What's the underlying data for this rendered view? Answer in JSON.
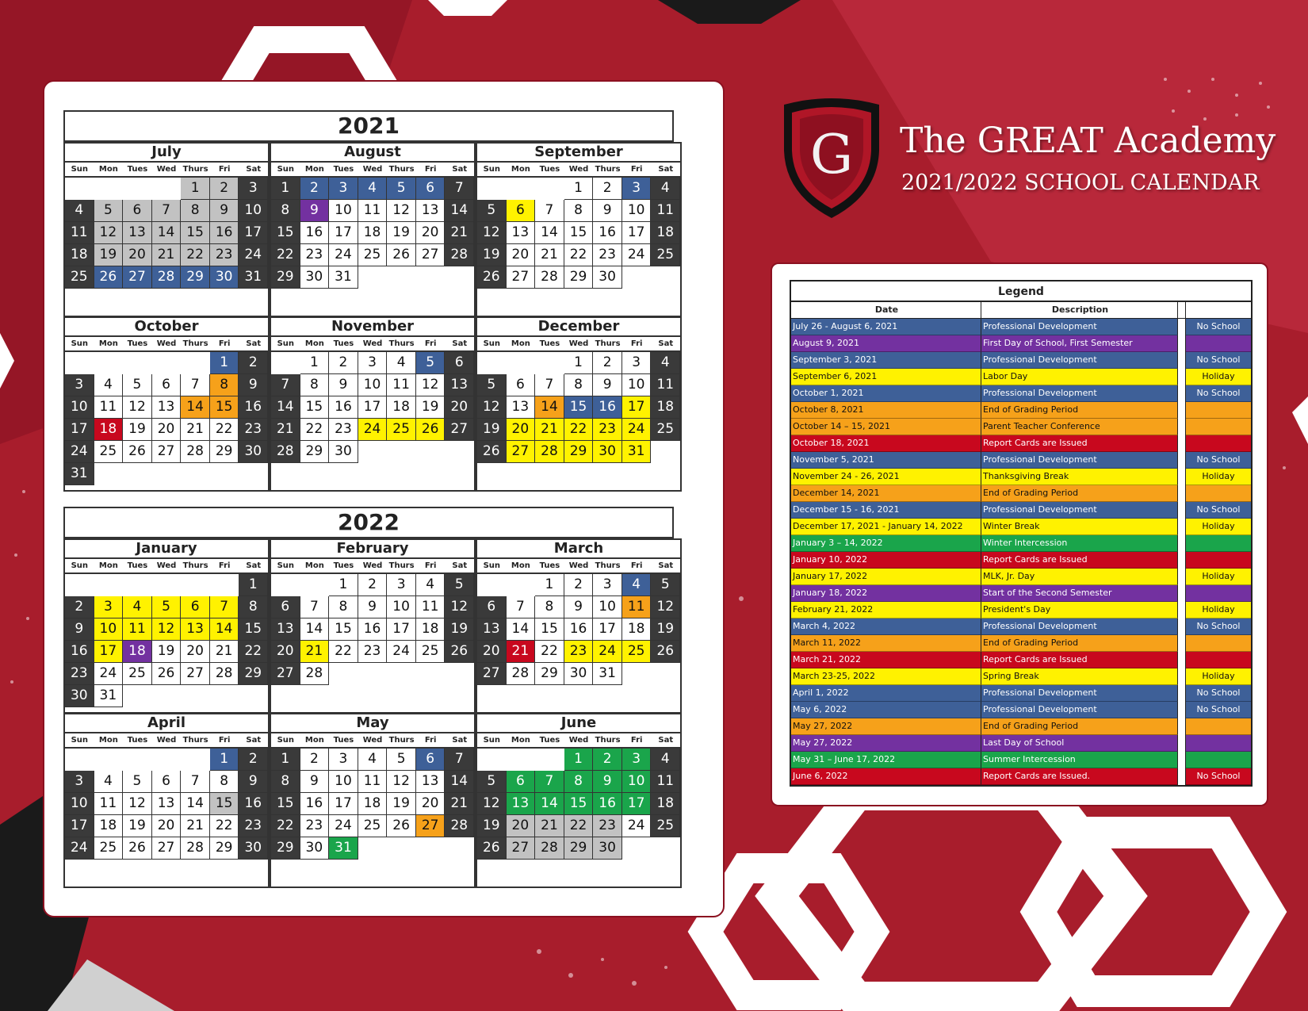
{
  "header": {
    "logo_letter": "G",
    "school_name": "The GREAT Academy",
    "subtitle": "2021/2022 SCHOOL CALENDAR"
  },
  "colors": {
    "weekend": "#3a3a3a",
    "gray": "#c2c2c2",
    "blue": "#3e6098",
    "purple": "#7331a0",
    "yellow": "#fff200",
    "orange": "#f6a11a",
    "red": "#c8081e",
    "green": "#1aa54b"
  },
  "weekday_headers": [
    "Sun",
    "Mon",
    "Tues",
    "Wed",
    "Thurs",
    "Fri",
    "Sat"
  ],
  "years": [
    {
      "year": "2021",
      "months": [
        {
          "name": "July",
          "start_dow": 4,
          "days": 31,
          "highlights": {
            "gray": [
              1,
              2,
              5,
              6,
              7,
              8,
              9,
              12,
              13,
              14,
              15,
              16,
              19,
              20,
              21,
              22,
              23
            ],
            "blue": [
              26,
              27,
              28,
              29,
              30
            ]
          }
        },
        {
          "name": "August",
          "start_dow": 0,
          "days": 31,
          "highlights": {
            "blue": [
              2,
              3,
              4,
              5,
              6
            ],
            "purple": [
              9
            ]
          }
        },
        {
          "name": "September",
          "start_dow": 3,
          "days": 30,
          "highlights": {
            "blue": [
              3
            ],
            "yellow": [
              6
            ]
          }
        },
        {
          "name": "October",
          "start_dow": 5,
          "days": 31,
          "highlights": {
            "blue": [
              1
            ],
            "orange": [
              8,
              14,
              15
            ],
            "red": [
              18
            ]
          }
        },
        {
          "name": "November",
          "start_dow": 1,
          "days": 30,
          "highlights": {
            "blue": [
              5
            ],
            "yellow": [
              24,
              25,
              26
            ]
          }
        },
        {
          "name": "December",
          "start_dow": 3,
          "days": 31,
          "highlights": {
            "orange": [
              14
            ],
            "blue": [
              15,
              16
            ],
            "yellow": [
              17,
              20,
              21,
              22,
              23,
              24,
              27,
              28,
              29,
              30,
              31
            ]
          }
        }
      ]
    },
    {
      "year": "2022",
      "months": [
        {
          "name": "January",
          "start_dow": 6,
          "days": 31,
          "highlights": {
            "yellow": [
              3,
              4,
              5,
              6,
              7,
              10,
              11,
              12,
              13,
              14,
              17
            ],
            "purple": [
              18
            ]
          }
        },
        {
          "name": "February",
          "start_dow": 2,
          "days": 28,
          "highlights": {
            "yellow": [
              21
            ]
          }
        },
        {
          "name": "March",
          "start_dow": 2,
          "days": 31,
          "highlights": {
            "blue": [
              4
            ],
            "orange": [
              11
            ],
            "red": [
              21
            ],
            "yellow": [
              23,
              24,
              25
            ]
          }
        },
        {
          "name": "April",
          "start_dow": 5,
          "days": 30,
          "highlights": {
            "blue": [
              1
            ],
            "gray": [
              15
            ]
          }
        },
        {
          "name": "May",
          "start_dow": 0,
          "days": 31,
          "highlights": {
            "blue": [
              6
            ],
            "orange": [
              27
            ],
            "green": [
              31
            ]
          }
        },
        {
          "name": "June",
          "start_dow": 3,
          "days": 30,
          "highlights": {
            "green": [
              1,
              2,
              3,
              6,
              7,
              8,
              9,
              10,
              13,
              14,
              15,
              16,
              17
            ],
            "gray": [
              20,
              21,
              22,
              23,
              27,
              28,
              29,
              30
            ]
          }
        }
      ]
    }
  ],
  "legend": {
    "title": "Legend",
    "date_header": "Date",
    "description_header": "Description",
    "rows": [
      {
        "date": "July 26 - August 6, 2021",
        "description": "Professional Development",
        "status": "No School",
        "color": "blue"
      },
      {
        "date": "August 9, 2021",
        "description": "First Day of School, First Semester",
        "status": "",
        "color": "purple"
      },
      {
        "date": "September 3, 2021",
        "description": "Professional Development",
        "status": "No School",
        "color": "blue"
      },
      {
        "date": "September 6, 2021",
        "description": "Labor Day",
        "status": "Holiday",
        "color": "yellow"
      },
      {
        "date": "October 1, 2021",
        "description": "Professional Development",
        "status": "No School",
        "color": "blue"
      },
      {
        "date": "October 8, 2021",
        "description": "End of Grading Period",
        "status": "",
        "color": "orange"
      },
      {
        "date": "October 14 – 15, 2021",
        "description": "Parent Teacher Conference",
        "status": "",
        "color": "orange"
      },
      {
        "date": "October 18, 2021",
        "description": "Report Cards are Issued",
        "status": "",
        "color": "red"
      },
      {
        "date": "November 5, 2021",
        "description": "Professional Development",
        "status": "No School",
        "color": "blue"
      },
      {
        "date": "November 24 - 26, 2021",
        "description": "Thanksgiving Break",
        "status": "Holiday",
        "color": "yellow"
      },
      {
        "date": "December 14, 2021",
        "description": "End of Grading Period",
        "status": "",
        "color": "orange"
      },
      {
        "date": "December 15 - 16, 2021",
        "description": "Professional Development",
        "status": "No School",
        "color": "blue"
      },
      {
        "date": "December 17, 2021 - January 14, 2022",
        "description": "Winter Break",
        "status": "Holiday",
        "color": "yellow"
      },
      {
        "date": "January 3 – 14, 2022",
        "description": "Winter Intercession",
        "status": "",
        "color": "green"
      },
      {
        "date": "January 10, 2022",
        "description": "Report Cards are Issued",
        "status": "",
        "color": "red"
      },
      {
        "date": "January 17, 2022",
        "description": "MLK, Jr. Day",
        "status": "Holiday",
        "color": "yellow"
      },
      {
        "date": "January 18, 2022",
        "description": "Start of the Second Semester",
        "status": "",
        "color": "purple"
      },
      {
        "date": "February 21, 2022",
        "description": "President's Day",
        "status": "Holiday",
        "color": "yellow"
      },
      {
        "date": "March 4, 2022",
        "description": "Professional Development",
        "status": "No School",
        "color": "blue"
      },
      {
        "date": "March 11, 2022",
        "description": "End of Grading Period",
        "status": "",
        "color": "orange"
      },
      {
        "date": "March 21, 2022",
        "description": "Report Cards are Issued",
        "status": "",
        "color": "red"
      },
      {
        "date": "March 23-25, 2022",
        "description": "Spring Break",
        "status": "Holiday",
        "color": "yellow"
      },
      {
        "date": "April 1, 2022",
        "description": "Professional Development",
        "status": "No School",
        "color": "blue"
      },
      {
        "date": "May 6, 2022",
        "description": "Professional Development",
        "status": "No School",
        "color": "blue"
      },
      {
        "date": "May 27, 2022",
        "description": "End of Grading Period",
        "status": "",
        "color": "orange"
      },
      {
        "date": "May 27, 2022",
        "description": "Last Day of School",
        "status": "",
        "color": "purple"
      },
      {
        "date": "May 31 – June 17, 2022",
        "description": "Summer Intercession",
        "status": "",
        "color": "green"
      },
      {
        "date": "June 6, 2022",
        "description": "Report Cards are Issued.",
        "status": "No School",
        "color": "red"
      }
    ]
  }
}
